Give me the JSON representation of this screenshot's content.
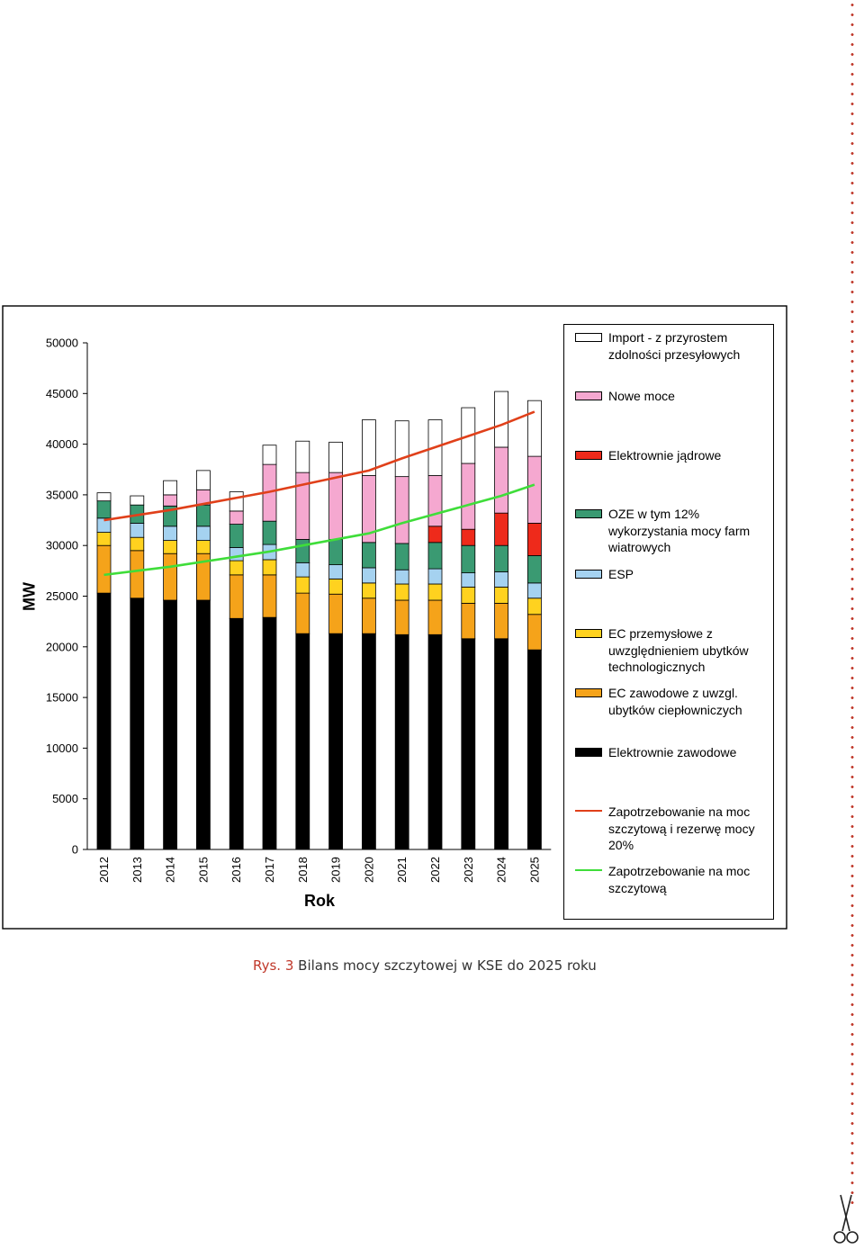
{
  "caption": {
    "prefix": "Rys. 3",
    "text": "Bilans mocy szczytowej w KSE do 2025 roku"
  },
  "chart_data": {
    "type": "bar",
    "stacked": true,
    "title": "",
    "xlabel": "Rok",
    "ylabel": "MW",
    "ylim": [
      0,
      50000
    ],
    "yticks": [
      "0",
      "5000",
      "10000",
      "15000",
      "20000",
      "25000",
      "30000",
      "35000",
      "40000",
      "45000",
      "50000"
    ],
    "grid": false,
    "legend_position": "right",
    "categories": [
      "2012",
      "2013",
      "2014",
      "2015",
      "2016",
      "2017",
      "2018",
      "2019",
      "2020",
      "2021",
      "2022",
      "2023",
      "2024",
      "2025"
    ],
    "series": [
      {
        "name": "Elektrownie zawodowe",
        "color": "#000000",
        "values": [
          25300,
          24800,
          24600,
          24600,
          22800,
          22900,
          21300,
          21300,
          21300,
          21200,
          21200,
          20800,
          20800,
          19700
        ]
      },
      {
        "name": "EC zawodowe z uwzgl. ubytków ciepłowniczych",
        "color": "#f5a31a",
        "values": [
          4700,
          4700,
          4600,
          4600,
          4300,
          4200,
          4000,
          3900,
          3500,
          3400,
          3400,
          3500,
          3500,
          3500
        ]
      },
      {
        "name": "EC przemysłowe z uwzględnieniem ubytków technologicznych",
        "color": "#ffd21f",
        "values": [
          1300,
          1300,
          1300,
          1300,
          1400,
          1500,
          1600,
          1500,
          1500,
          1600,
          1600,
          1600,
          1600,
          1600
        ]
      },
      {
        "name": "ESP",
        "color": "#a5d2f0",
        "values": [
          1400,
          1400,
          1400,
          1400,
          1300,
          1500,
          1400,
          1400,
          1500,
          1400,
          1500,
          1400,
          1500,
          1500
        ]
      },
      {
        "name": "OZE w tym 12% wykorzystania mocy farm wiatrowych",
        "color": "#3a9a72",
        "values": [
          1700,
          1800,
          2000,
          2100,
          2300,
          2300,
          2300,
          2500,
          2500,
          2600,
          2600,
          2700,
          2600,
          2700
        ]
      },
      {
        "name": "Elektrownie jądrowe",
        "color": "#ee2a1b",
        "values": [
          0,
          0,
          0,
          0,
          0,
          0,
          0,
          0,
          0,
          0,
          1600,
          1600,
          3200,
          3200
        ]
      },
      {
        "name": "Nowe moce",
        "color": "#f5a8d0",
        "values": [
          0,
          0,
          1100,
          1500,
          1300,
          5600,
          6600,
          6600,
          6600,
          6600,
          5000,
          6500,
          6500,
          6600
        ]
      },
      {
        "name": "Import - z przyrostem zdolności przesyłowych",
        "color": "#ffffff",
        "values": [
          800,
          900,
          1400,
          1900,
          1900,
          1900,
          3100,
          3000,
          5500,
          5500,
          5500,
          5500,
          5500,
          5500
        ]
      }
    ],
    "lines": [
      {
        "name": "Zapotrzebowanie na moc szczytową i rezerwę mocy 20%",
        "color": "#e0401a",
        "values": [
          32500,
          33000,
          33500,
          34100,
          34700,
          35300,
          36000,
          36700,
          37400,
          38600,
          39700,
          40800,
          41900,
          43200
        ]
      },
      {
        "name": "Zapotrzebowanie na moc szczytową",
        "color": "#3fdd3a",
        "values": [
          27100,
          27500,
          27900,
          28400,
          28900,
          29400,
          30000,
          30600,
          31200,
          32200,
          33100,
          34000,
          34900,
          36000
        ]
      }
    ],
    "legend": [
      {
        "label": "Import - z przyrostem zdolności przesyłowych",
        "color": "#ffffff",
        "kind": "bar"
      },
      {
        "label": "Nowe moce",
        "color": "#f5a8d0",
        "kind": "bar"
      },
      {
        "label": "Elektrownie jądrowe",
        "color": "#ee2a1b",
        "kind": "bar"
      },
      {
        "label": "OZE w tym 12% wykorzystania mocy farm wiatrowych",
        "color": "#3a9a72",
        "kind": "bar"
      },
      {
        "label": "ESP",
        "color": "#a5d2f0",
        "kind": "bar"
      },
      {
        "label": "EC przemysłowe z uwzględnieniem ubytków technologicznych",
        "color": "#ffd21f",
        "kind": "bar"
      },
      {
        "label": "EC zawodowe z uwzgl. ubytków ciepłowniczych",
        "color": "#f5a31a",
        "kind": "bar"
      },
      {
        "label": "Elektrownie zawodowe",
        "color": "#000000",
        "kind": "bar"
      },
      {
        "label": "Zapotrzebowanie na moc szczytową i rezerwę mocy 20%",
        "color": "#e0401a",
        "kind": "line"
      },
      {
        "label": "Zapotrzebowanie na moc szczytową",
        "color": "#3fdd3a",
        "kind": "line"
      }
    ]
  }
}
